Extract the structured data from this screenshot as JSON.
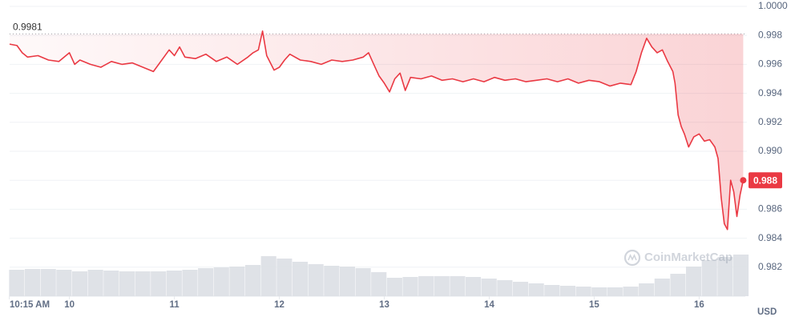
{
  "chart_data": {
    "type": "line",
    "x": [
      9.43,
      9.5,
      9.55,
      9.6,
      9.7,
      9.8,
      9.9,
      10.0,
      10.05,
      10.1,
      10.2,
      10.3,
      10.4,
      10.5,
      10.6,
      10.7,
      10.8,
      10.85,
      10.95,
      11.0,
      11.05,
      11.1,
      11.2,
      11.3,
      11.4,
      11.5,
      11.6,
      11.7,
      11.75,
      11.8,
      11.84,
      11.88,
      11.95,
      12.0,
      12.05,
      12.1,
      12.2,
      12.3,
      12.4,
      12.5,
      12.6,
      12.7,
      12.8,
      12.85,
      12.9,
      12.95,
      13.0,
      13.05,
      13.1,
      13.15,
      13.2,
      13.25,
      13.35,
      13.45,
      13.55,
      13.65,
      13.75,
      13.85,
      13.95,
      14.05,
      14.15,
      14.25,
      14.35,
      14.45,
      14.55,
      14.65,
      14.75,
      14.85,
      14.95,
      15.05,
      15.15,
      15.25,
      15.35,
      15.4,
      15.45,
      15.5,
      15.55,
      15.6,
      15.65,
      15.7,
      15.75,
      15.77,
      15.8,
      15.83,
      15.86,
      15.9,
      15.95,
      16.0,
      16.05,
      16.1,
      16.15,
      16.18,
      16.21,
      16.24,
      16.27,
      16.3,
      16.33,
      16.36,
      16.39,
      16.42
    ],
    "series": [
      {
        "color": "#ea3943",
        "values": [
          0.9974,
          0.9973,
          0.9968,
          0.9965,
          0.9966,
          0.9963,
          0.9962,
          0.9968,
          0.996,
          0.9963,
          0.996,
          0.9958,
          0.9962,
          0.996,
          0.9961,
          0.9958,
          0.9955,
          0.996,
          0.997,
          0.9966,
          0.9972,
          0.9965,
          0.9964,
          0.9967,
          0.9962,
          0.9965,
          0.996,
          0.9965,
          0.9968,
          0.997,
          0.9983,
          0.9966,
          0.9956,
          0.9958,
          0.9963,
          0.9967,
          0.9963,
          0.9962,
          0.996,
          0.9963,
          0.9962,
          0.9963,
          0.9965,
          0.9968,
          0.996,
          0.9952,
          0.9947,
          0.9941,
          0.995,
          0.9954,
          0.9942,
          0.9951,
          0.995,
          0.9952,
          0.9949,
          0.995,
          0.9948,
          0.995,
          0.9948,
          0.9951,
          0.9949,
          0.995,
          0.9948,
          0.9949,
          0.995,
          0.9948,
          0.995,
          0.9947,
          0.9949,
          0.9948,
          0.9945,
          0.9947,
          0.9946,
          0.9955,
          0.9968,
          0.9978,
          0.9972,
          0.9968,
          0.997,
          0.9962,
          0.9955,
          0.9947,
          0.9925,
          0.9917,
          0.9912,
          0.9903,
          0.991,
          0.9912,
          0.9907,
          0.9908,
          0.9903,
          0.9895,
          0.9868,
          0.985,
          0.9846,
          0.988,
          0.9872,
          0.9855,
          0.987,
          0.988
        ]
      }
    ],
    "xlim": [
      9.43,
      16.44
    ],
    "xticks": [
      {
        "value": 9.427,
        "label": "10:15 AM"
      },
      10,
      11,
      12,
      13,
      14,
      15,
      16
    ],
    "ylim": [
      0.98,
      1.0
    ],
    "yticks": [
      0.982,
      0.984,
      0.986,
      0.988,
      {
        "value": 0.99,
        "label": "0.990"
      },
      0.992,
      0.994,
      0.996,
      0.998,
      {
        "value": 1,
        "label": "1.0000"
      }
    ],
    "grid": true,
    "reference_line": 0.9981,
    "current_price": 0.988,
    "unit_label": "USD",
    "watermark": "CoinMarketCap",
    "volume": {
      "color": "#dcdfe4",
      "ylim": [
        0,
        100
      ],
      "x": [
        9.5,
        9.65,
        9.8,
        9.95,
        10.1,
        10.25,
        10.4,
        10.55,
        10.7,
        10.85,
        11.0,
        11.15,
        11.3,
        11.45,
        11.6,
        11.75,
        11.9,
        12.05,
        12.2,
        12.35,
        12.5,
        12.65,
        12.8,
        12.95,
        13.1,
        13.25,
        13.4,
        13.55,
        13.7,
        13.85,
        14.0,
        14.15,
        14.3,
        14.45,
        14.6,
        14.75,
        14.9,
        15.05,
        15.2,
        15.35,
        15.5,
        15.65,
        15.8,
        15.95,
        16.1,
        16.25,
        16.4
      ],
      "values": [
        33,
        34,
        34,
        33,
        31,
        33,
        32,
        31,
        31,
        31,
        32,
        33,
        35,
        36,
        37,
        39,
        50,
        47,
        43,
        40,
        38,
        37,
        35,
        30,
        23,
        24,
        25,
        25,
        25,
        24,
        22,
        20,
        18,
        16,
        14,
        13,
        12,
        11,
        11,
        12,
        16,
        22,
        28,
        37,
        45,
        49,
        52
      ]
    }
  }
}
